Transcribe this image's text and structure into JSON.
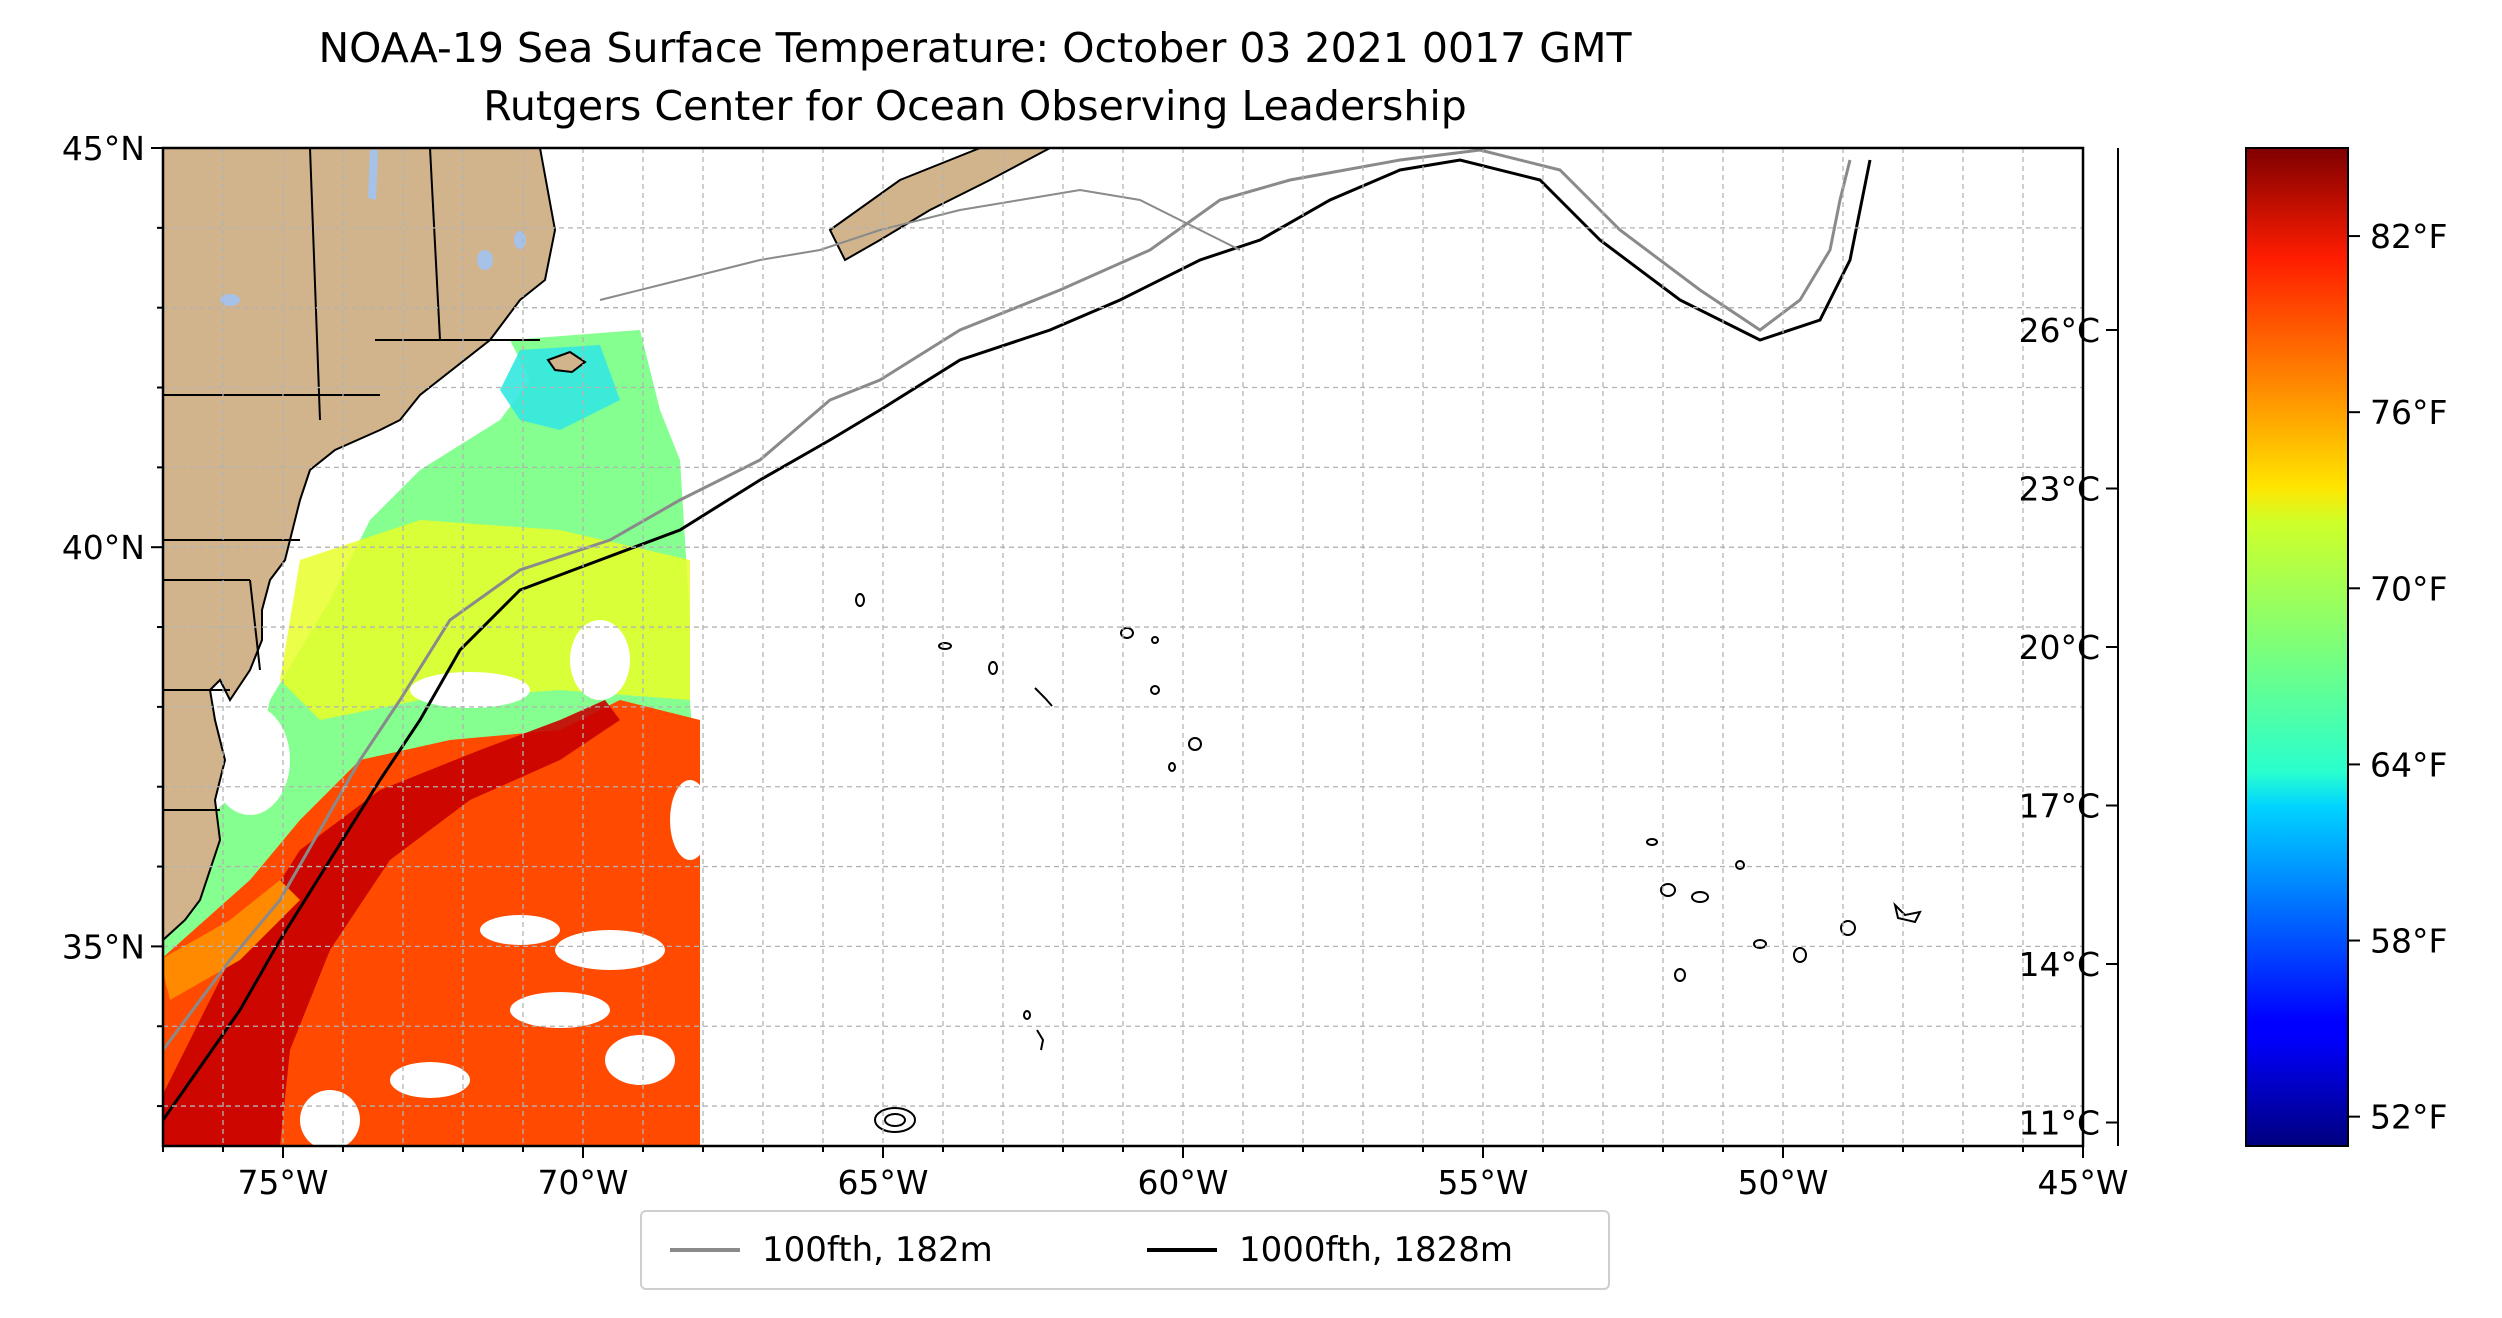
{
  "title": {
    "line1": "NOAA-19 Sea Surface Temperature: October 03 2021 0017 GMT",
    "line2": "Rutgers Center for Ocean Observing Leadership"
  },
  "map": {
    "lon_range": [
      -77,
      -45
    ],
    "lat_range": [
      32.5,
      45
    ],
    "lon_ticks": [
      {
        "value": -75,
        "label": "75°W"
      },
      {
        "value": -70,
        "label": "70°W"
      },
      {
        "value": -65,
        "label": "65°W"
      },
      {
        "value": -60,
        "label": "60°W"
      },
      {
        "value": -55,
        "label": "55°W"
      },
      {
        "value": -50,
        "label": "50°W"
      },
      {
        "value": -45,
        "label": "45°W"
      }
    ],
    "lat_ticks": [
      {
        "value": 35,
        "label": "35°N"
      },
      {
        "value": 40,
        "label": "40°N"
      },
      {
        "value": 45,
        "label": "45°N"
      }
    ],
    "gridlines": true,
    "colors": {
      "land": "#d2b48c",
      "lakes": "#a6c2e8",
      "isobath_100fth": "#8a8a8a",
      "isobath_1000fth": "#000000",
      "gulf_stream": "#c80000"
    }
  },
  "colorbar": {
    "colormap": "jet",
    "f_range": [
      51,
      85
    ],
    "c_ticks": [
      {
        "value": 11,
        "label": "11°C"
      },
      {
        "value": 14,
        "label": "14°C"
      },
      {
        "value": 17,
        "label": "17°C"
      },
      {
        "value": 20,
        "label": "20°C"
      },
      {
        "value": 23,
        "label": "23°C"
      },
      {
        "value": 26,
        "label": "26°C"
      }
    ],
    "f_ticks": [
      {
        "value": 52,
        "label": "52°F"
      },
      {
        "value": 58,
        "label": "58°F"
      },
      {
        "value": 64,
        "label": "64°F"
      },
      {
        "value": 70,
        "label": "70°F"
      },
      {
        "value": 76,
        "label": "76°F"
      },
      {
        "value": 82,
        "label": "82°F"
      }
    ]
  },
  "legend": {
    "items": [
      {
        "label": "100fth, 182m",
        "color": "#8a8a8a"
      },
      {
        "label": "1000fth, 1828m",
        "color": "#000000"
      }
    ]
  }
}
